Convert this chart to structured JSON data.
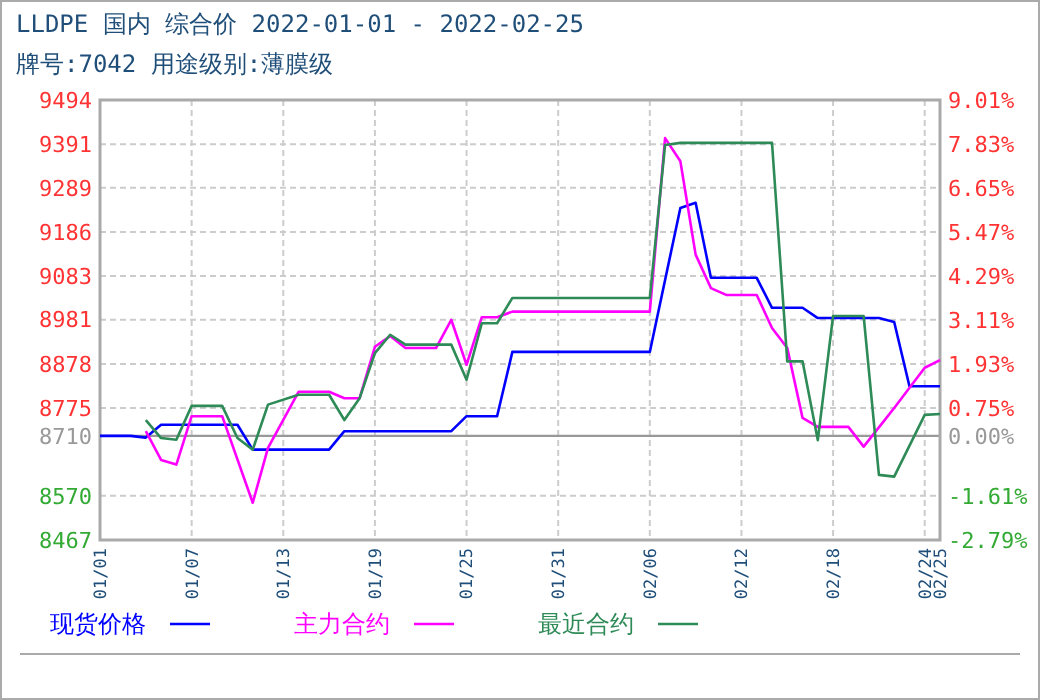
{
  "chart_data": {
    "type": "line",
    "title": "LLDPE 国内 综合价 2022-01-01 - 2022-02-25",
    "subtitle": "牌号:7042 用途级别:薄膜级",
    "xlim": [
      "2022-01-01",
      "2022-02-25"
    ],
    "xticks": [
      {
        "value": "2022-01-01",
        "label": "01/01"
      },
      {
        "value": "2022-01-07",
        "label": "01/07"
      },
      {
        "value": "2022-01-13",
        "label": "01/13"
      },
      {
        "value": "2022-01-19",
        "label": "01/19"
      },
      {
        "value": "2022-01-25",
        "label": "01/25"
      },
      {
        "value": "2022-01-31",
        "label": "01/31"
      },
      {
        "value": "2022-02-06",
        "label": "02/06"
      },
      {
        "value": "2022-02-12",
        "label": "02/12"
      },
      {
        "value": "2022-02-18",
        "label": "02/18"
      },
      {
        "value": "2022-02-24",
        "label": "02/24"
      },
      {
        "value": "2022-02-25",
        "label": "02/25"
      }
    ],
    "ylim": [
      8467,
      9494
    ],
    "yticks": [
      8467,
      8570,
      8710,
      8775,
      8878,
      8981,
      9083,
      9186,
      9289,
      9391,
      9494
    ],
    "y2lim": [
      -2.79,
      9.01
    ],
    "y2ticks": [
      {
        "value": -2.79,
        "label": "-2.79%"
      },
      {
        "value": -1.61,
        "label": "-1.61%"
      },
      {
        "value": 0,
        "label": "0.00%"
      },
      {
        "value": 0.75,
        "label": "0.75%"
      },
      {
        "value": 1.93,
        "label": "1.93%"
      },
      {
        "value": 3.11,
        "label": "3.11%"
      },
      {
        "value": 4.29,
        "label": "4.29%"
      },
      {
        "value": 5.47,
        "label": "5.47%"
      },
      {
        "value": 6.65,
        "label": "6.65%"
      },
      {
        "value": 7.83,
        "label": "7.83%"
      },
      {
        "value": 9.01,
        "label": "9.01%"
      }
    ],
    "ref_lines": [
      {
        "axis": "y",
        "value": 8710,
        "color": "#999999"
      }
    ],
    "grid": true,
    "legend": "bottom",
    "marker": "none",
    "line_style": "solid",
    "series": [
      {
        "name": "现货价格",
        "color": "#0000ff",
        "x": [
          "2022-01-01",
          "2022-01-03",
          "2022-01-04",
          "2022-01-05",
          "2022-01-10",
          "2022-01-11",
          "2022-01-16",
          "2022-01-17",
          "2022-01-24",
          "2022-01-25",
          "2022-01-27",
          "2022-01-28",
          "2022-02-06",
          "2022-02-08",
          "2022-02-09",
          "2022-02-10",
          "2022-02-13",
          "2022-02-14",
          "2022-02-16",
          "2022-02-17",
          "2022-02-21",
          "2022-02-22",
          "2022-02-23",
          "2022-02-25"
        ],
        "values": [
          8710,
          8710,
          8706,
          8736,
          8736,
          8678,
          8678,
          8721,
          8721,
          8756,
          8756,
          8906,
          8906,
          9242,
          9254,
          9079,
          9079,
          9009,
          9009,
          8985,
          8985,
          8976,
          8826,
          8826
        ]
      },
      {
        "name": "主力合约",
        "color": "#ff00ff",
        "x": [
          "2022-01-04",
          "2022-01-05",
          "2022-01-06",
          "2022-01-07",
          "2022-01-09",
          "2022-01-11",
          "2022-01-12",
          "2022-01-14",
          "2022-01-16",
          "2022-01-17",
          "2022-01-18",
          "2022-01-19",
          "2022-01-20",
          "2022-01-21",
          "2022-01-23",
          "2022-01-24",
          "2022-01-25",
          "2022-01-26",
          "2022-01-27",
          "2022-01-28",
          "2022-02-06",
          "2022-02-07",
          "2022-02-08",
          "2022-02-09",
          "2022-02-10",
          "2022-02-11",
          "2022-02-13",
          "2022-02-14",
          "2022-02-15",
          "2022-02-16",
          "2022-02-17",
          "2022-02-19",
          "2022-02-20",
          "2022-02-21",
          "2022-02-22",
          "2022-02-24",
          "2022-02-25"
        ],
        "values": [
          8721,
          8654,
          8643,
          8756,
          8756,
          8554,
          8682,
          8813,
          8813,
          8798,
          8798,
          8918,
          8943,
          8915,
          8915,
          8981,
          8876,
          8987,
          8987,
          9000,
          9000,
          9405,
          9351,
          9133,
          9055,
          9039,
          9039,
          8962,
          8915,
          8752,
          8731,
          8731,
          8685,
          8730,
          8775,
          8869,
          8887
        ]
      },
      {
        "name": "最近合约",
        "color": "#2e8b57",
        "x": [
          "2022-01-04",
          "2022-01-05",
          "2022-01-06",
          "2022-01-07",
          "2022-01-09",
          "2022-01-10",
          "2022-01-11",
          "2022-01-12",
          "2022-01-14",
          "2022-01-16",
          "2022-01-17",
          "2022-01-18",
          "2022-01-19",
          "2022-01-20",
          "2022-01-21",
          "2022-01-24",
          "2022-01-25",
          "2022-01-26",
          "2022-01-27",
          "2022-01-28",
          "2022-02-06",
          "2022-02-07",
          "2022-02-08",
          "2022-02-14",
          "2022-02-15",
          "2022-02-16",
          "2022-02-17",
          "2022-02-18",
          "2022-02-20",
          "2022-02-21",
          "2022-02-22",
          "2022-02-24",
          "2022-02-25"
        ],
        "values": [
          8747,
          8705,
          8701,
          8780,
          8780,
          8705,
          8678,
          8783,
          8806,
          8806,
          8747,
          8798,
          8903,
          8946,
          8923,
          8923,
          8841,
          8973,
          8973,
          9032,
          9032,
          9389,
          9394,
          9394,
          8884,
          8884,
          8700,
          8990,
          8990,
          8619,
          8615,
          8759,
          8761
        ]
      }
    ]
  }
}
